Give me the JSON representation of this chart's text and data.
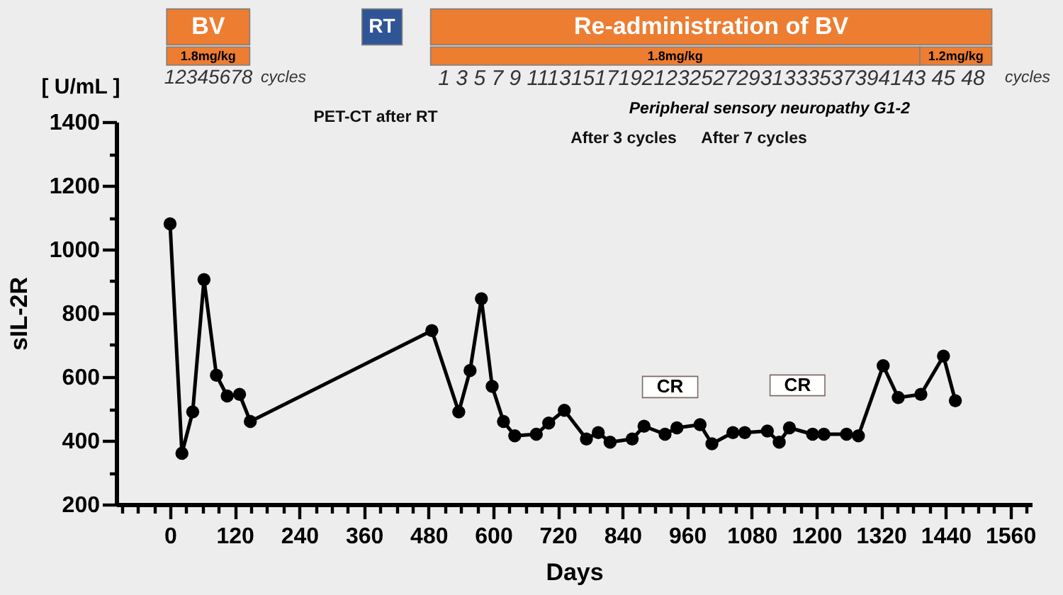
{
  "chart_data": {
    "type": "line",
    "xlabel": "Days",
    "ylabel": "sIL-2R",
    "annotations": [
      "BV",
      "1.8mg/kg",
      "RT",
      "Re-administration of BV",
      "1.8mg/kg",
      "1.2mg/kg",
      "12345678",
      "cycles",
      "1 3 5 7 9 1113151719212325272931333537394143 45 48",
      "cycles",
      "[ U/mL ]",
      "Peripheral sensory neuropathy G1-2",
      "PET-CT after RT",
      "After 3 cycles",
      "After 7 cycles",
      "CR",
      "CR"
    ],
    "x": [
      0,
      22,
      42,
      63,
      86,
      106,
      129,
      149,
      486,
      536,
      557,
      578,
      598,
      619,
      640,
      680,
      703,
      732,
      773,
      795,
      817,
      858,
      880,
      919,
      941,
      984,
      1006,
      1045,
      1067,
      1109,
      1131,
      1150,
      1193,
      1214,
      1256,
      1278,
      1324,
      1352,
      1394,
      1436,
      1458
    ],
    "series": [
      {
        "color": "#000000",
        "values": [
          1080,
          360,
          490,
          905,
          605,
          540,
          545,
          460,
          745,
          490,
          620,
          845,
          570,
          460,
          415,
          420,
          455,
          495,
          405,
          425,
          395,
          405,
          445,
          420,
          440,
          450,
          390,
          425,
          425,
          430,
          395,
          440,
          420,
          420,
          420,
          415,
          635,
          535,
          545,
          665,
          525
        ]
      }
    ],
    "xlim": [
      -100,
      1600
    ],
    "xticks": [
      {
        "value": -90,
        "label": null
      },
      {
        "value": -60,
        "label": null
      },
      {
        "value": -30,
        "label": null
      },
      0,
      {
        "value": 30,
        "label": null
      },
      {
        "value": 60,
        "label": null
      },
      {
        "value": 90,
        "label": null
      },
      120,
      {
        "value": 150,
        "label": null
      },
      {
        "value": 180,
        "label": null
      },
      {
        "value": 210,
        "label": null
      },
      240,
      {
        "value": 270,
        "label": null
      },
      {
        "value": 300,
        "label": null
      },
      {
        "value": 330,
        "label": null
      },
      360,
      {
        "value": 390,
        "label": null
      },
      {
        "value": 420,
        "label": null
      },
      {
        "value": 450,
        "label": null
      },
      480,
      {
        "value": 510,
        "label": null
      },
      {
        "value": 540,
        "label": null
      },
      {
        "value": 570,
        "label": null
      },
      600,
      {
        "value": 630,
        "label": null
      },
      {
        "value": 660,
        "label": null
      },
      {
        "value": 690,
        "label": null
      },
      720,
      {
        "value": 750,
        "label": null
      },
      {
        "value": 780,
        "label": null
      },
      {
        "value": 810,
        "label": null
      },
      840,
      {
        "value": 870,
        "label": null
      },
      {
        "value": 900,
        "label": null
      },
      {
        "value": 930,
        "label": null
      },
      960,
      {
        "value": 990,
        "label": null
      },
      {
        "value": 1020,
        "label": null
      },
      {
        "value": 1050,
        "label": null
      },
      1080,
      {
        "value": 1110,
        "label": null
      },
      {
        "value": 1140,
        "label": null
      },
      {
        "value": 1170,
        "label": null
      },
      1200,
      {
        "value": 1230,
        "label": null
      },
      {
        "value": 1260,
        "label": null
      },
      {
        "value": 1290,
        "label": null
      },
      1320,
      {
        "value": 1350,
        "label": null
      },
      {
        "value": 1380,
        "label": null
      },
      {
        "value": 1410,
        "label": null
      },
      1440,
      {
        "value": 1470,
        "label": null
      },
      {
        "value": 1500,
        "label": null
      },
      {
        "value": 1530,
        "label": null
      },
      1560,
      {
        "value": 1590,
        "label": null
      }
    ],
    "ylim": [
      200,
      1400
    ],
    "yticks": [
      200,
      {
        "value": 300,
        "label": null
      },
      400,
      {
        "value": 500,
        "label": null
      },
      600,
      {
        "value": 700,
        "label": null
      },
      800,
      {
        "value": 900,
        "label": null
      },
      1000,
      {
        "value": 1100,
        "label": null
      },
      1200,
      {
        "value": 1300,
        "label": null
      },
      1400
    ],
    "marker": "circle",
    "line_style": "solid"
  }
}
